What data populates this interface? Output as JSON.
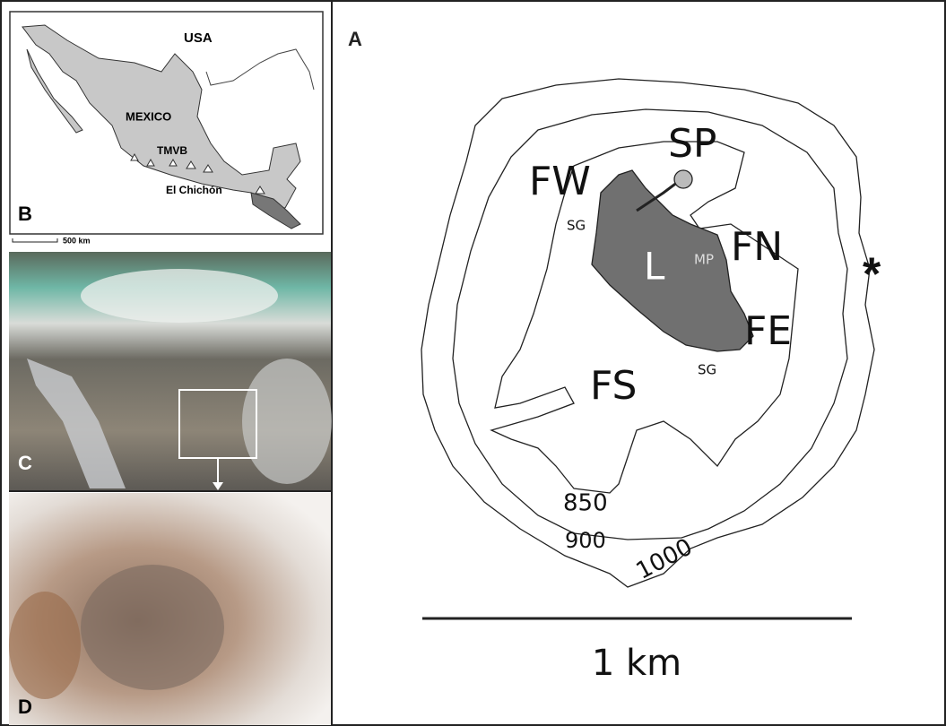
{
  "panels": {
    "a": {
      "label": "A",
      "marker": "*",
      "scale_bar": "1 km",
      "features": {
        "sp": "SP",
        "fw": "FW",
        "sg_west": "SG",
        "lake": "L",
        "mp": "MP",
        "fn": "FN",
        "fe": "FE",
        "sg_south": "SG",
        "fs": "FS"
      },
      "contours": [
        850,
        900,
        1000
      ]
    },
    "b": {
      "label": "B",
      "places": [
        "USA",
        "MEXICO",
        "TMVB",
        "El Chichón"
      ],
      "scale_bar": "500 km"
    },
    "c": {
      "label": "C"
    },
    "d": {
      "label": "D"
    }
  }
}
